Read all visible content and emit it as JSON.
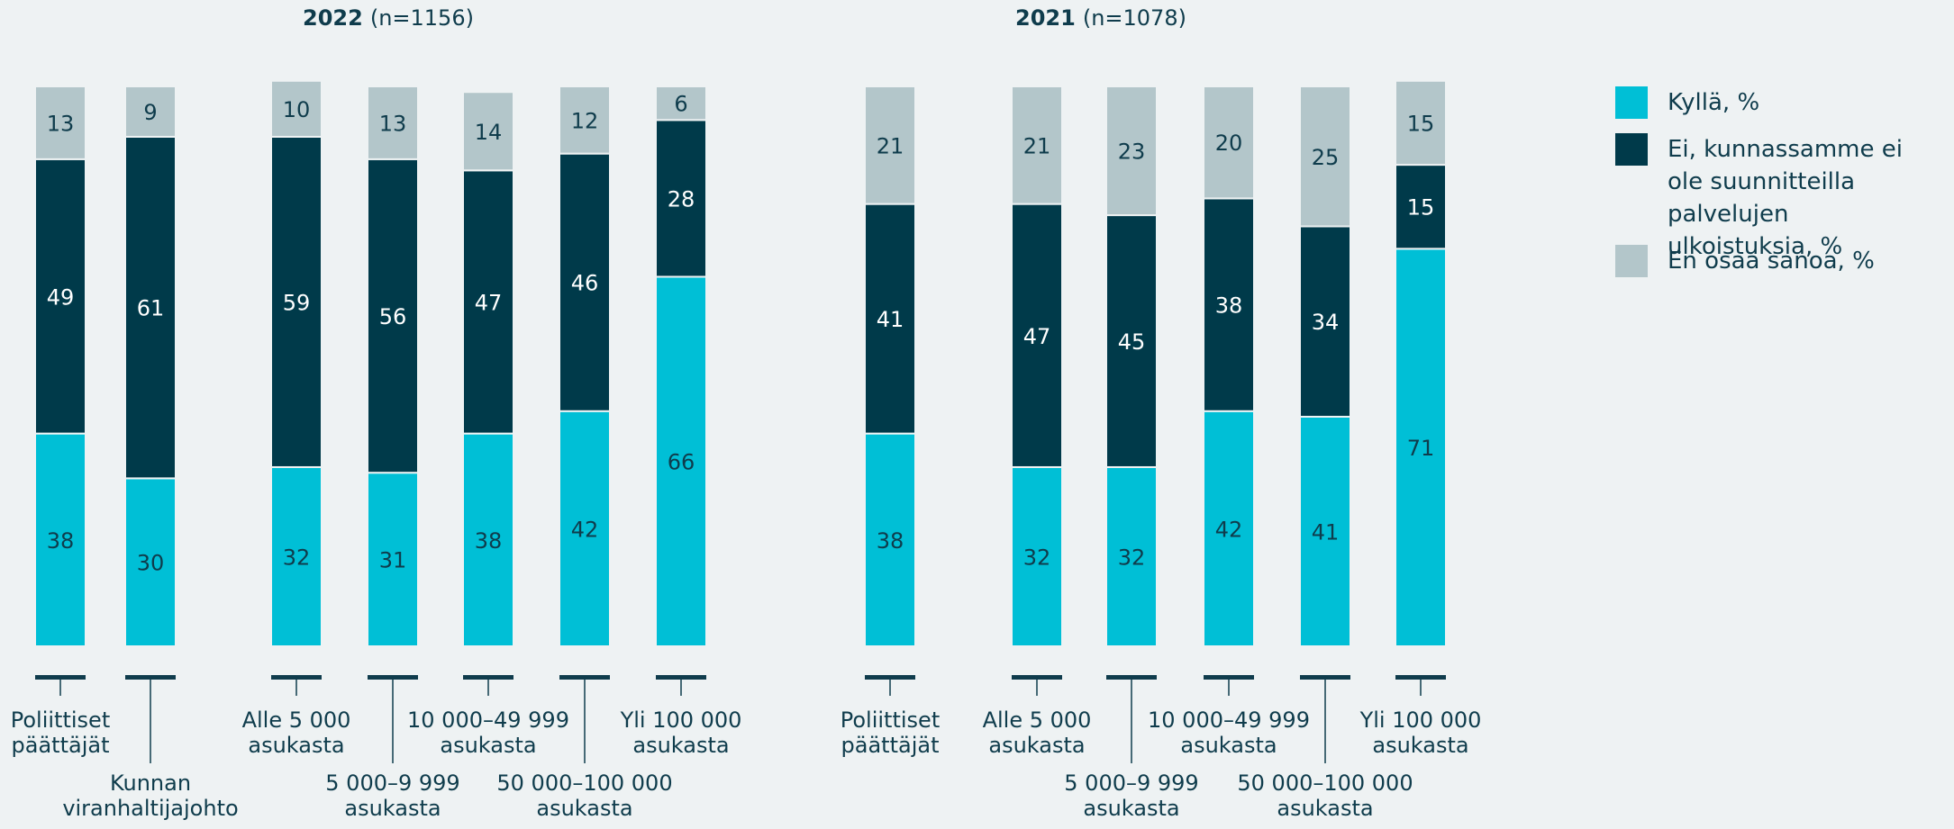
{
  "chart_data": [
    {
      "type": "stacked_bar",
      "title": "2022",
      "subtitle": "(n=1156)",
      "categories": [
        "Poliittiset\npäättäjät",
        "Kunnan\nviranhaltijajohto",
        "Alle 5 000\nasukasta",
        "5 000–9 999\nasukasta",
        "10 000–49 999\nasukasta",
        "50 000–100 000\nasukasta",
        "Yli 100 000\nasukasta"
      ],
      "series": [
        {
          "name": "Kyllä, %",
          "color": "#00bfd6",
          "values": [
            38,
            30,
            32,
            31,
            38,
            42,
            66
          ]
        },
        {
          "name": "Ei, kunnassamme ei ole suunnitteilla palvelujen ulkoistuksia, %",
          "color": "#003a4a",
          "values": [
            49,
            61,
            59,
            56,
            47,
            46,
            28
          ]
        },
        {
          "name": "En osaa sanoa, %",
          "color": "#b3c6ca",
          "values": [
            13,
            9,
            10,
            13,
            14,
            12,
            6
          ]
        }
      ]
    },
    {
      "type": "stacked_bar",
      "title": "2021",
      "subtitle": "(n=1078)",
      "categories": [
        "Poliittiset\npäättäjät",
        "Alle 5 000\nasukasta",
        "5 000–9 999\nasukasta",
        "10 000–49 999\nasukasta",
        "50 000–100 000\nasukasta",
        "Yli 100 000\nasukasta"
      ],
      "series": [
        {
          "name": "Kyllä, %",
          "color": "#00bfd6",
          "values": [
            38,
            32,
            32,
            42,
            41,
            71
          ]
        },
        {
          "name": "Ei, kunnassamme ei ole suunnitteilla palvelujen ulkoistuksia, %",
          "color": "#003a4a",
          "values": [
            41,
            47,
            45,
            38,
            34,
            15
          ]
        },
        {
          "name": "En osaa sanoa, %",
          "color": "#b3c6ca",
          "values": [
            21,
            21,
            23,
            20,
            25,
            15
          ]
        }
      ]
    }
  ]
}
